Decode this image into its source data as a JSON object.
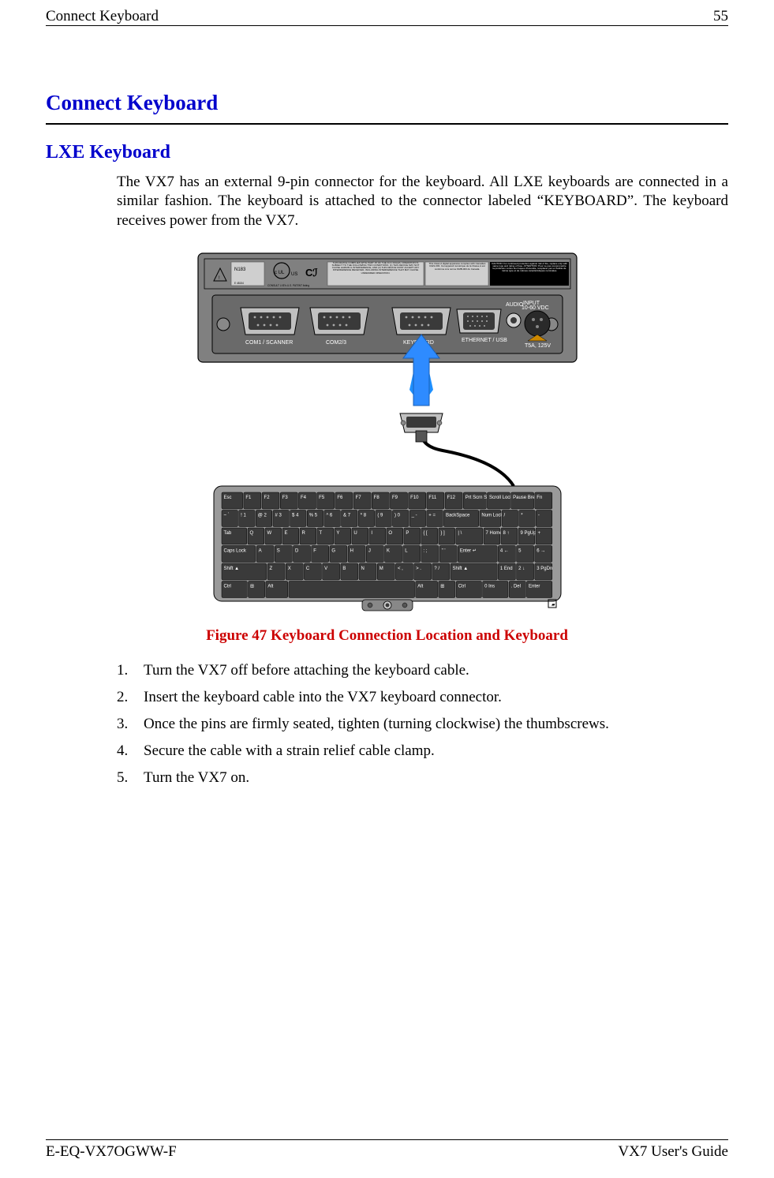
{
  "page": {
    "running_head_left": "Connect Keyboard",
    "running_head_right": "55",
    "footer_left": "E-EQ-VX7OGWW-F",
    "footer_right": "VX7 User's Guide"
  },
  "colors": {
    "heading_blue": "#0000cc",
    "caption_red": "#cc0000",
    "panel_gray": "#808080",
    "port_gray": "#c0c0c0",
    "key_dark": "#3a3a3a",
    "arrow_blue": "#1e90ff"
  },
  "h1": "Connect Keyboard",
  "h2": "LXE Keyboard",
  "intro": "The VX7 has an external 9-pin connector for the keyboard. All LXE keyboards are connected in a similar fashion. The keyboard is attached to the connector labeled “KEYBOARD”. The keyboard receives power from the VX7.",
  "figure": {
    "number": 47,
    "caption": "Figure 47  Keyboard Connection Location and Keyboard",
    "backpanel": {
      "label_top": {
        "n183": "N183",
        "us": "US",
        "ce": "CE",
        "e_mark": "E 48154",
        "consult": "CONSULT LXE's U.S. PATENT listing"
      },
      "compliance_left": "THIS DEVICE COMPLIES WITH PART 15 OF THE FCC RULES. OPERATION IS SUBJECT TO THE FOLLOWING TWO CONDITIONS: (1) THIS DEVICE MAY NOT CAUSE HARMFUL INTERFERENCE, AND (2) THIS DEVICE MUST ACCEPT ANY INTERFERENCE RECEIVED, INCLUDING INTERFERENCE THAT MAY CAUSE UNDESIRED OPERATION.",
      "compliance_mid": "This Class A digital apparatus complies with Canadian ICES-003. Cet appareil numérique de la Classe A est conforme à la norme NMB-003 du Canada.",
      "compliance_right": "CAUTION: For continued protection against risk of fire, replace only with same type and rating of fuse. ATTENTION: Pour ne pas compromettre la protection contre les risques d'incendie, remplacer par un fusible de même type et de mêmes caractéristiques nominales.",
      "ports": {
        "com1": "COM1 / SCANNER",
        "com23": "COM2/3",
        "keyboard": "KEYBOARD",
        "ethernet": "ETHERNET / USB",
        "audio": "AUDIO",
        "power": "10-60 VDC",
        "input": "INPUT",
        "fuse": "T5A, 125V"
      }
    },
    "connector_label": "",
    "keyboard_rows": {
      "r1": [
        "Esc",
        "F1",
        "F2",
        "F3",
        "F4",
        "F5",
        "F6",
        "F7",
        "F8",
        "F9",
        "F10",
        "F11",
        "F12",
        "Prt Scrn SysRq",
        "Scroll Lock",
        "Pause Break",
        "Fn"
      ],
      "r2": [
        "~ `",
        "! 1",
        "@ 2",
        "# 3",
        "$ 4",
        "% 5",
        "^ 6",
        "& 7",
        "* 8",
        "( 9",
        ") 0",
        "_ -",
        "+ =",
        "BackSpace",
        "Num Lock",
        "/",
        "*",
        "-"
      ],
      "r3": [
        "Tab",
        "Q",
        "W",
        "E",
        "R",
        "T",
        "Y",
        "U",
        "I",
        "O",
        "P",
        "{ [",
        "} ]",
        "| \\",
        "7 Home",
        "8 ↑",
        "9 PgUp",
        "+"
      ],
      "r4": [
        "Caps Lock",
        "A",
        "S",
        "D",
        "F",
        "G",
        "H",
        "J",
        "K",
        "L",
        ": ;",
        "\" '",
        "Enter ↵",
        "4 ←",
        "5",
        "6 →"
      ],
      "r5": [
        "Shift ▲",
        "Z",
        "X",
        "C",
        "V",
        "B",
        "N",
        "M",
        "< ,",
        "> .",
        "? /",
        "Shift ▲",
        "1 End",
        "2 ↓",
        "3 PgDn"
      ],
      "r6": [
        "Ctrl",
        "⊞",
        "Alt",
        " ",
        "Alt",
        "⊞",
        "Ctrl",
        "0 Ins",
        ". Del",
        "Enter"
      ]
    }
  },
  "steps": [
    "Turn the VX7 off before attaching the keyboard cable.",
    "Insert the keyboard cable into the VX7 keyboard connector.",
    "Once the pins are firmly seated, tighten (turning clockwise) the thumbscrews.",
    "Secure the cable with a strain relief cable clamp.",
    "Turn the VX7 on."
  ]
}
